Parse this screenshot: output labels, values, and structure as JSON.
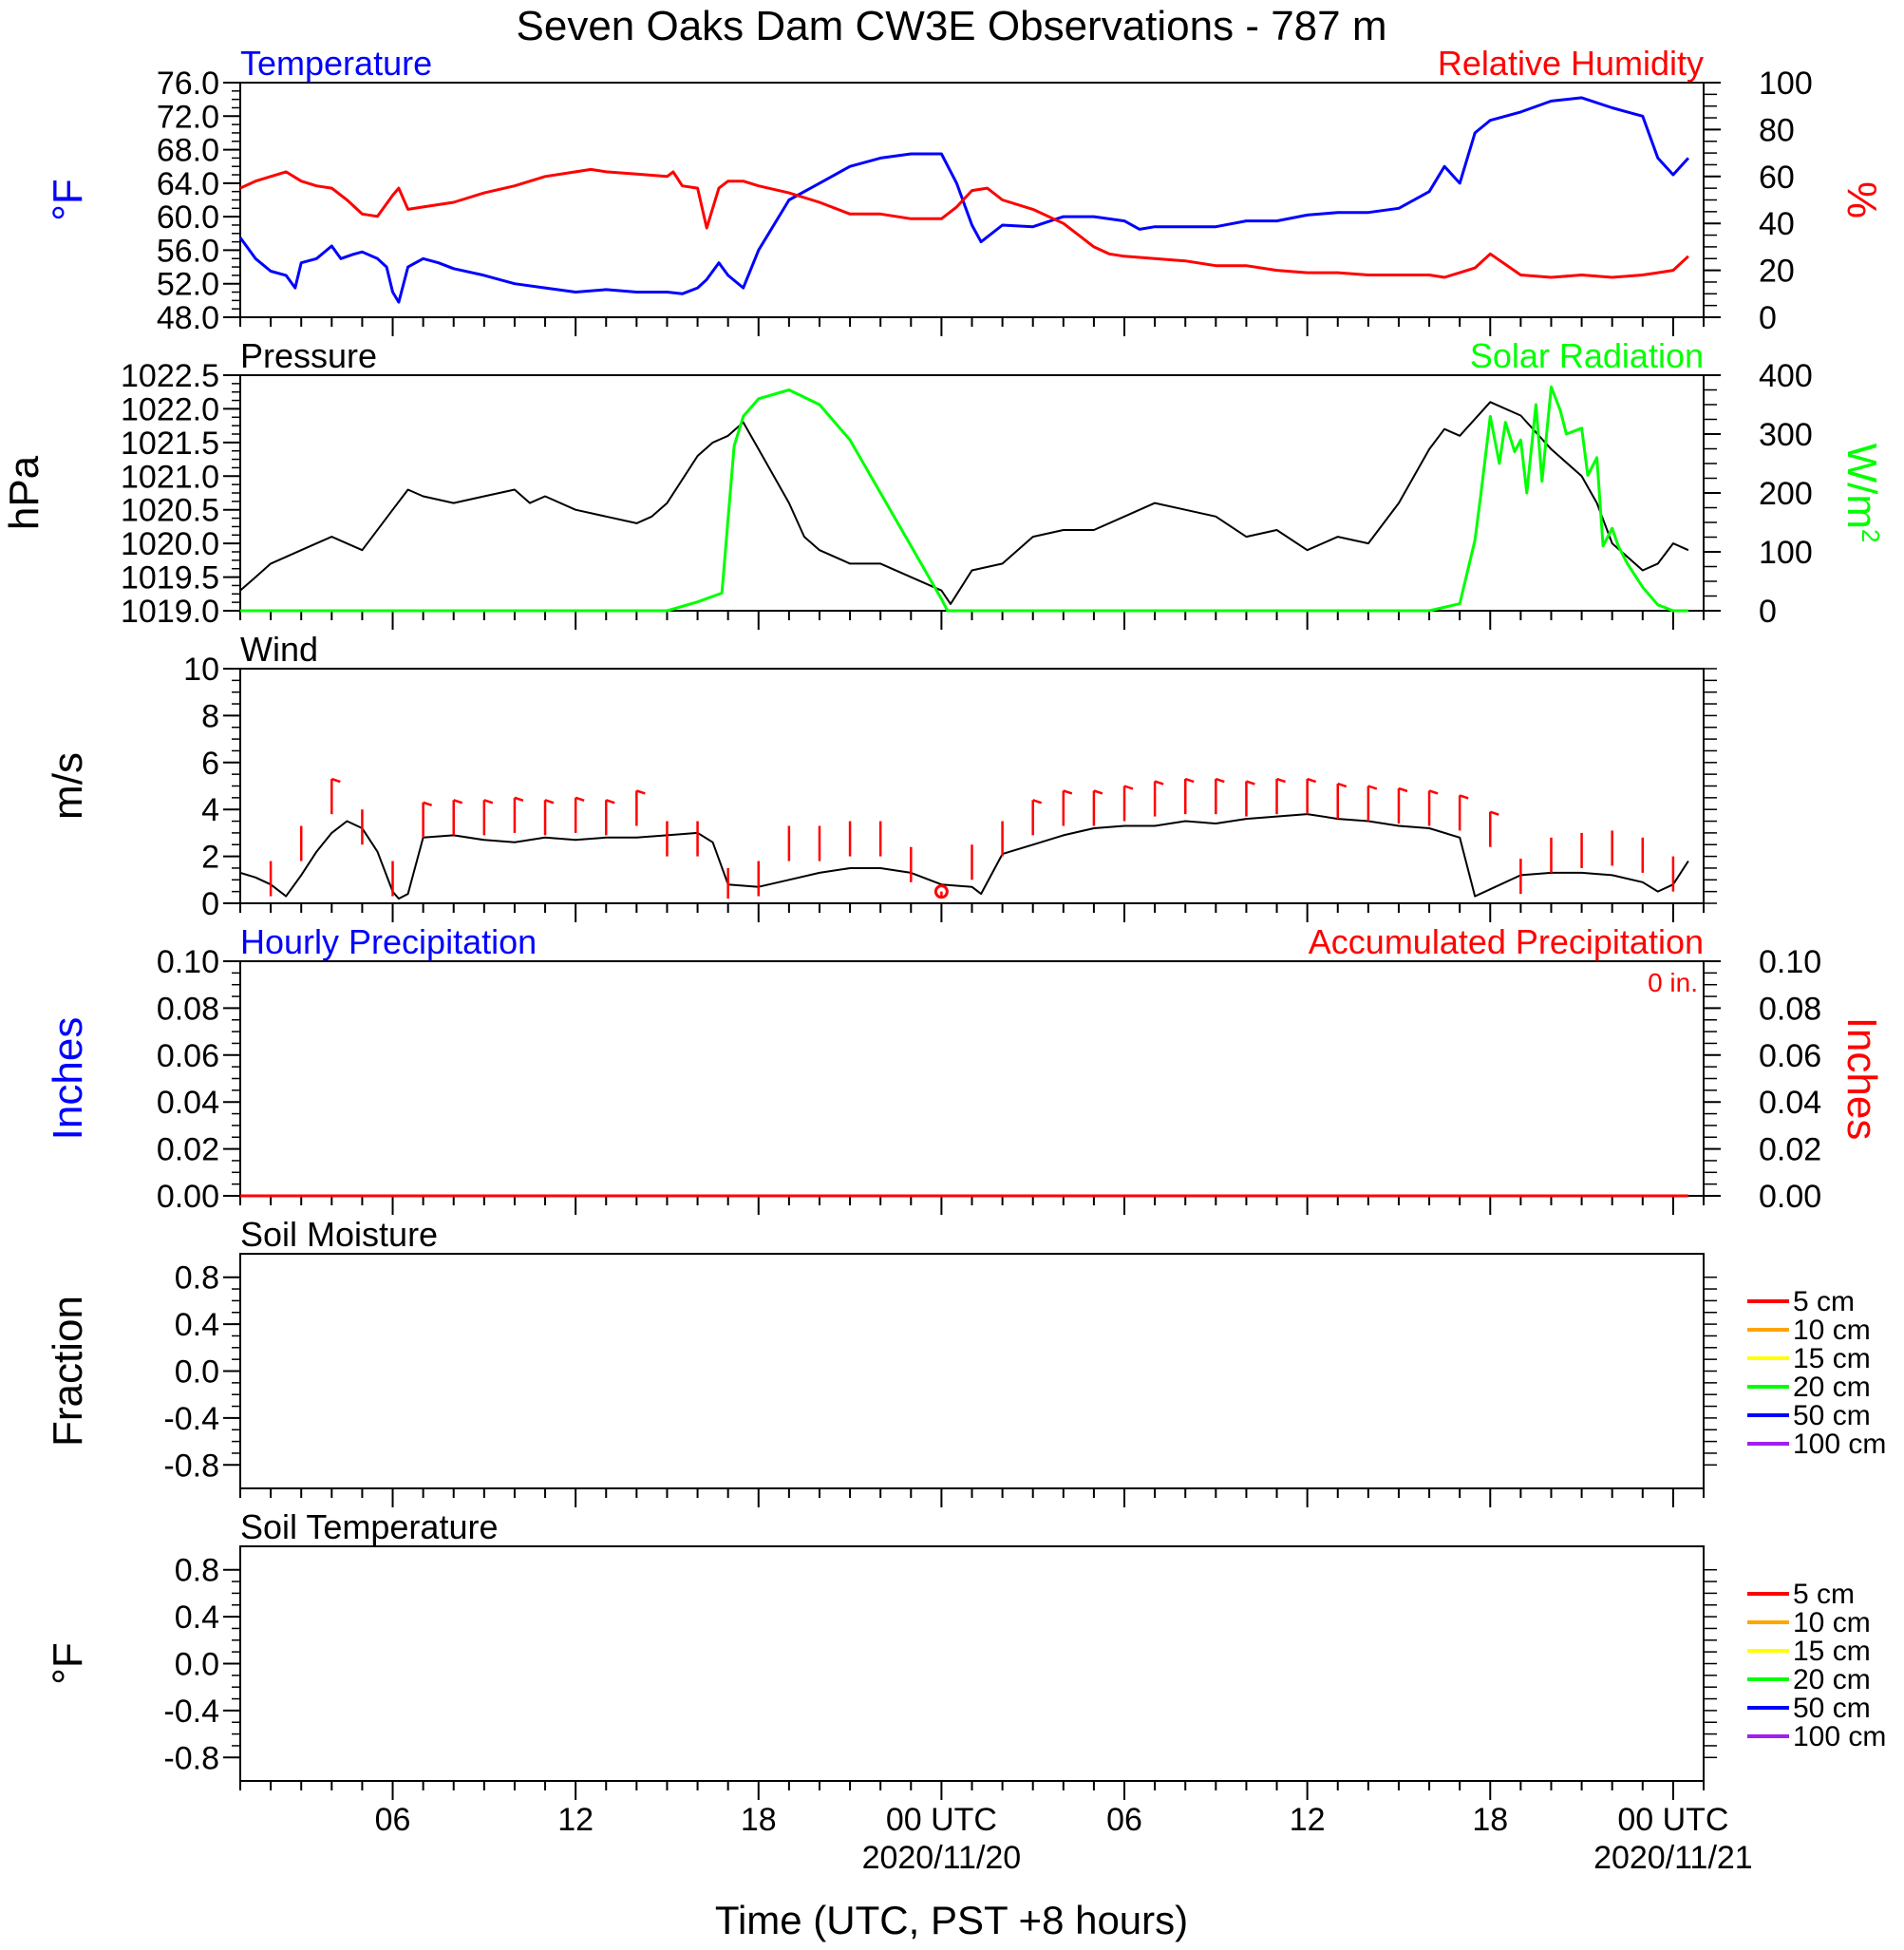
{
  "title": "Seven Oaks Dam CW3E Observations - 787 m",
  "x_axis": {
    "label": "Time (UTC, PST +8 hours)",
    "ticks": [
      {
        "t": 6,
        "label": "06",
        "date": ""
      },
      {
        "t": 12,
        "label": "12",
        "date": ""
      },
      {
        "t": 18,
        "label": "18",
        "date": ""
      },
      {
        "t": 24,
        "label": "00 UTC",
        "date": "2020/11/20"
      },
      {
        "t": 30,
        "label": "06",
        "date": ""
      },
      {
        "t": 36,
        "label": "12",
        "date": ""
      },
      {
        "t": 42,
        "label": "18",
        "date": ""
      },
      {
        "t": 48,
        "label": "00 UTC",
        "date": "2020/11/21"
      }
    ],
    "range_hours": [
      1,
      49
    ]
  },
  "colors": {
    "blue": "#0000ff",
    "red": "#ff0000",
    "green": "#00ff00",
    "black": "#000000",
    "orange": "#ffa500",
    "yellow": "#ffff00",
    "purple": "#a020f0"
  },
  "chart_data": [
    {
      "type": "line",
      "title_left": "Temperature",
      "title_right": "Relative Humidity",
      "left_axis": {
        "label": "°F",
        "ylim": [
          48,
          76
        ],
        "ticks": [
          "48.0",
          "52.0",
          "56.0",
          "60.0",
          "64.0",
          "68.0",
          "72.0",
          "76.0"
        ]
      },
      "right_axis": {
        "label": "%",
        "ylim": [
          0,
          100
        ],
        "ticks": [
          "0",
          "20",
          "40",
          "60",
          "80",
          "100"
        ]
      },
      "series": [
        {
          "name": "Temperature",
          "axis": "left",
          "color": "#0000ff",
          "x": [
            1,
            1.5,
            2,
            2.5,
            2.8,
            3,
            3.5,
            4,
            4.3,
            4.7,
            5,
            5.5,
            5.8,
            6,
            6.2,
            6.5,
            7,
            7.5,
            8,
            9,
            10,
            11,
            12,
            13,
            14,
            15,
            15.5,
            16,
            16.3,
            16.7,
            17,
            17.5,
            18,
            19,
            20,
            21,
            22,
            23,
            24,
            24.5,
            25,
            25.3,
            26,
            27,
            28,
            29,
            30,
            30.5,
            31,
            32,
            33,
            34,
            35,
            36,
            37,
            38,
            39,
            40,
            40.5,
            41,
            41.5,
            42,
            43,
            44,
            45,
            46,
            46.5,
            47,
            47.5,
            48,
            48.5
          ],
          "y": [
            57.5,
            55,
            53.5,
            53,
            51.5,
            54.5,
            55,
            56.5,
            55,
            55.5,
            55.8,
            55,
            54,
            51,
            49.8,
            54,
            55,
            54.5,
            53.8,
            53,
            52,
            51.5,
            51,
            51.3,
            51,
            51,
            50.8,
            51.5,
            52.5,
            54.5,
            53,
            51.5,
            56,
            62,
            64,
            66,
            67,
            67.5,
            67.5,
            64,
            59,
            57,
            59,
            58.8,
            60,
            60,
            59.5,
            58.5,
            58.8,
            58.8,
            58.8,
            59.5,
            59.5,
            60.2,
            60.5,
            60.5,
            61,
            63,
            66,
            64,
            70,
            71.5,
            72.5,
            73.8,
            74.2,
            73,
            72.5,
            72,
            67,
            65,
            67
          ]
        },
        {
          "name": "Relative Humidity",
          "axis": "right",
          "color": "#ff0000",
          "x": [
            1,
            1.5,
            2,
            2.5,
            3,
            3.5,
            4,
            4.5,
            5,
            5.5,
            6,
            6.2,
            6.5,
            7,
            8,
            9,
            10,
            11,
            12,
            12.5,
            13,
            14,
            15,
            15.2,
            15.5,
            16,
            16.3,
            16.7,
            17,
            17.5,
            18,
            19,
            20,
            21,
            22,
            23,
            24,
            24.5,
            25,
            25.5,
            26,
            27,
            28,
            28.5,
            29,
            29.5,
            30,
            31,
            32,
            33,
            34,
            35,
            36,
            37,
            38,
            39,
            40,
            40.5,
            41,
            41.5,
            42,
            43,
            44,
            45,
            46,
            47,
            47.5,
            48,
            48.5
          ],
          "y": [
            55,
            58,
            60,
            62,
            58,
            56,
            55,
            50,
            44,
            43,
            52,
            55,
            46,
            47,
            49,
            53,
            56,
            60,
            62,
            63,
            62,
            61,
            60,
            62,
            56,
            55,
            38,
            55,
            58,
            58,
            56,
            53,
            49,
            44,
            44,
            42,
            42,
            47,
            54,
            55,
            50,
            46,
            40,
            35,
            30,
            27,
            26,
            25,
            24,
            22,
            22,
            20,
            19,
            19,
            18,
            18,
            18,
            17,
            19,
            21,
            27,
            18,
            17,
            18,
            17,
            18,
            19,
            20,
            26
          ]
        }
      ]
    },
    {
      "type": "line",
      "title_left": "Pressure",
      "title_right": "Solar Radiation",
      "left_axis": {
        "label": "hPa",
        "ylim": [
          1019,
          1022.5
        ],
        "ticks": [
          "1019.0",
          "1019.5",
          "1020.0",
          "1020.5",
          "1021.0",
          "1021.5",
          "1022.0",
          "1022.5"
        ]
      },
      "right_axis": {
        "label": "W/m",
        "label_sup": "2",
        "ylim": [
          0,
          400
        ],
        "ticks": [
          "0",
          "100",
          "200",
          "300",
          "400"
        ]
      },
      "series": [
        {
          "name": "Pressure",
          "axis": "left",
          "color": "#000000",
          "x": [
            1,
            1.5,
            2,
            3,
            3.5,
            4,
            5,
            6,
            6.5,
            7,
            8,
            9,
            10,
            10.5,
            11,
            12,
            13,
            14,
            14.5,
            15,
            16,
            16.5,
            17,
            17.5,
            18,
            19,
            19.5,
            20,
            21,
            22,
            23,
            24,
            24.3,
            25,
            26,
            27,
            28,
            29,
            30,
            31,
            32,
            33,
            34,
            35,
            36,
            37,
            38,
            39,
            40,
            40.5,
            41,
            42,
            43,
            44,
            45,
            45.5,
            46,
            47,
            47.5,
            48,
            48.5
          ],
          "y": [
            1019.3,
            1019.5,
            1019.7,
            1019.9,
            1020,
            1020.1,
            1019.9,
            1020.5,
            1020.8,
            1020.7,
            1020.6,
            1020.7,
            1020.8,
            1020.6,
            1020.7,
            1020.5,
            1020.4,
            1020.3,
            1020.4,
            1020.6,
            1021.3,
            1021.5,
            1021.6,
            1021.8,
            1021.4,
            1020.6,
            1020.1,
            1019.9,
            1019.7,
            1019.7,
            1019.5,
            1019.3,
            1019.1,
            1019.6,
            1019.7,
            1020.1,
            1020.2,
            1020.2,
            1020.4,
            1020.6,
            1020.5,
            1020.4,
            1020.1,
            1020.2,
            1019.9,
            1020.1,
            1020,
            1020.6,
            1021.4,
            1021.7,
            1021.6,
            1022.1,
            1021.9,
            1021.4,
            1021,
            1020.6,
            1020,
            1019.6,
            1019.7,
            1020,
            1019.9
          ]
        },
        {
          "name": "Solar Radiation",
          "axis": "right",
          "color": "#00ff00",
          "x": [
            1,
            14,
            15,
            16,
            16.8,
            17.2,
            17.5,
            18,
            19,
            20,
            21,
            22,
            23,
            24,
            24.2,
            25,
            40,
            41,
            41.5,
            41.7,
            42,
            42.3,
            42.5,
            42.8,
            43,
            43.2,
            43.5,
            43.7,
            44,
            44.3,
            44.5,
            45,
            45.2,
            45.5,
            45.7,
            46,
            46.2,
            46.5,
            47,
            47.5,
            48,
            48.5
          ],
          "y": [
            0,
            0,
            0,
            15,
            30,
            280,
            330,
            360,
            375,
            350,
            290,
            200,
            110,
            20,
            0,
            0,
            0,
            12,
            120,
            200,
            330,
            250,
            320,
            270,
            290,
            200,
            350,
            220,
            380,
            340,
            300,
            310,
            230,
            260,
            110,
            140,
            110,
            80,
            40,
            10,
            0,
            0
          ]
        }
      ]
    },
    {
      "type": "line",
      "title_left": "Wind",
      "left_axis": {
        "label": "m/s",
        "ylim": [
          0,
          10
        ],
        "ticks": [
          "0",
          "2",
          "4",
          "6",
          "8",
          "10"
        ]
      },
      "series": [
        {
          "name": "Wind",
          "axis": "left",
          "color": "#000000",
          "x": [
            1,
            1.5,
            2,
            2.5,
            3,
            3.5,
            4,
            4.5,
            5,
            5.5,
            6,
            6.2,
            6.5,
            7,
            8,
            9,
            10,
            11,
            12,
            13,
            14,
            15,
            16,
            16.5,
            17,
            18,
            19,
            20,
            21,
            22,
            23,
            24,
            25,
            25.3,
            26,
            27,
            28,
            29,
            30,
            31,
            32,
            33,
            34,
            35,
            36,
            37,
            38,
            39,
            40,
            41,
            41.5,
            42,
            43,
            44,
            45,
            46,
            47,
            47.5,
            48,
            48.5
          ],
          "y": [
            1.3,
            1.1,
            0.8,
            0.3,
            1.2,
            2.2,
            3,
            3.5,
            3.2,
            2.2,
            0.5,
            0.2,
            0.4,
            2.8,
            2.9,
            2.7,
            2.6,
            2.8,
            2.7,
            2.8,
            2.8,
            2.9,
            3,
            2.6,
            0.8,
            0.7,
            1,
            1.3,
            1.5,
            1.5,
            1.3,
            0.8,
            0.7,
            0.4,
            2.1,
            2.5,
            2.9,
            3.2,
            3.3,
            3.3,
            3.5,
            3.4,
            3.6,
            3.7,
            3.8,
            3.6,
            3.5,
            3.3,
            3.2,
            2.8,
            0.3,
            0.6,
            1.2,
            1.3,
            1.3,
            1.2,
            0.9,
            0.5,
            0.8,
            1.8
          ]
        }
      ],
      "barbs": {
        "color": "#ff0000",
        "t": [
          2,
          3,
          4,
          5,
          6,
          7,
          8,
          9,
          10,
          11,
          12,
          13,
          14,
          15,
          16,
          17,
          18,
          19,
          20,
          21,
          22,
          23,
          24,
          25,
          26,
          27,
          28,
          29,
          30,
          31,
          32,
          33,
          34,
          35,
          36,
          37,
          38,
          39,
          40,
          41,
          42,
          43,
          44,
          45,
          46,
          47,
          48
        ],
        "speed": [
          1.8,
          3.3,
          5.3,
          4.0,
          1.8,
          4.3,
          4.4,
          4.4,
          4.5,
          4.4,
          4.5,
          4.4,
          4.8,
          3.5,
          3.5,
          1.5,
          1.8,
          3.3,
          3.3,
          3.5,
          3.5,
          2.4,
          0.5,
          2.5,
          3.5,
          4.4,
          4.8,
          4.8,
          5.0,
          5.2,
          5.3,
          5.3,
          5.2,
          5.3,
          5.3,
          5.1,
          5.0,
          4.9,
          4.8,
          4.6,
          3.9,
          1.9,
          2.8,
          3.0,
          3.1,
          2.8,
          2.0
        ],
        "flagged": [
          false,
          false,
          true,
          false,
          false,
          true,
          true,
          true,
          true,
          true,
          true,
          true,
          true,
          false,
          false,
          false,
          false,
          false,
          false,
          false,
          false,
          false,
          false,
          false,
          false,
          true,
          true,
          true,
          true,
          true,
          true,
          true,
          true,
          true,
          true,
          true,
          true,
          true,
          true,
          true,
          true,
          false,
          false,
          false,
          false,
          false,
          false
        ],
        "calm_at": 24
      }
    },
    {
      "type": "line",
      "title_left": "Hourly Precipitation",
      "title_right": "Accumulated Precipitation",
      "total_label": "0 in.",
      "left_axis": {
        "label": "Inches",
        "ylim": [
          0,
          0.1
        ],
        "ticks": [
          "0.00",
          "0.02",
          "0.04",
          "0.06",
          "0.08",
          "0.10"
        ]
      },
      "right_axis": {
        "label": "Inches",
        "ylim": [
          0,
          0.1
        ],
        "ticks": [
          "0.00",
          "0.02",
          "0.04",
          "0.06",
          "0.08",
          "0.10"
        ]
      },
      "series": [
        {
          "name": "Accumulated Precipitation",
          "axis": "right",
          "color": "#ff0000",
          "x": [
            1,
            48.5
          ],
          "y": [
            0,
            0
          ]
        }
      ]
    },
    {
      "type": "line",
      "title_left": "Soil Moisture",
      "left_axis": {
        "label": "Fraction",
        "ylim": [
          -1,
          1
        ],
        "ticks": [
          "-0.8",
          "-0.4",
          "0.0",
          "0.4",
          "0.8"
        ]
      },
      "legend": {
        "placement": "right",
        "items": [
          {
            "label": "5 cm",
            "color": "#ff0000"
          },
          {
            "label": "10 cm",
            "color": "#ffa500"
          },
          {
            "label": "15 cm",
            "color": "#ffff00"
          },
          {
            "label": "20 cm",
            "color": "#00ff00"
          },
          {
            "label": "50 cm",
            "color": "#0000ff"
          },
          {
            "label": "100 cm",
            "color": "#a020f0"
          }
        ]
      },
      "series": []
    },
    {
      "type": "line",
      "title_left": "Soil Temperature",
      "left_axis": {
        "label": "°F",
        "ylim": [
          -1,
          1
        ],
        "ticks": [
          "-0.8",
          "-0.4",
          "0.0",
          "0.4",
          "0.8"
        ]
      },
      "legend": {
        "placement": "right",
        "items": [
          {
            "label": "5 cm",
            "color": "#ff0000"
          },
          {
            "label": "10 cm",
            "color": "#ffa500"
          },
          {
            "label": "15 cm",
            "color": "#ffff00"
          },
          {
            "label": "20 cm",
            "color": "#00ff00"
          },
          {
            "label": "50 cm",
            "color": "#0000ff"
          },
          {
            "label": "100 cm",
            "color": "#a020f0"
          }
        ]
      },
      "series": []
    }
  ]
}
